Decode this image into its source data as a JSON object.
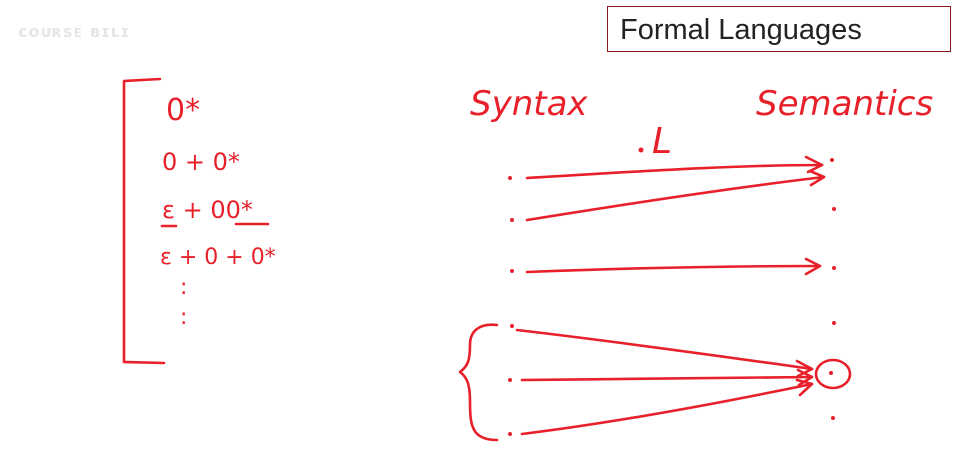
{
  "watermark": "ᴄᴏᴜʀsᴇ ʙɪʟɪ",
  "slide": {
    "title": "Formal Languages"
  },
  "board": {
    "expressions": [
      "0*",
      "0 + 0*",
      "ε + 00*",
      "ε + 0 + 0*",
      ":"
    ],
    "syntax_label": "Syntax",
    "semantics_label": "Semantics",
    "mapping_label": "L"
  },
  "colors": {
    "ink": "#e8202a",
    "title_border": "#8b1a1a"
  }
}
